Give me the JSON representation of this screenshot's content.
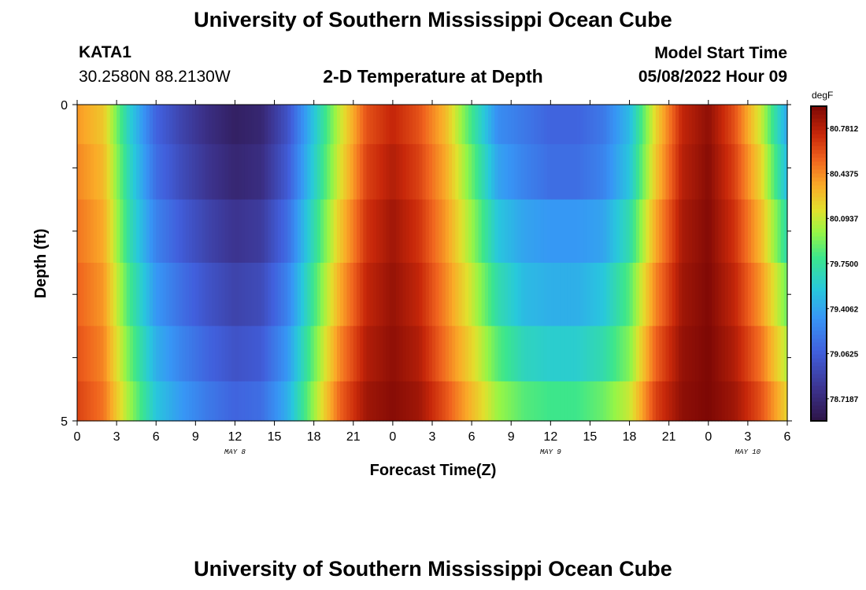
{
  "header": {
    "title": "University of Southern Mississippi Ocean Cube",
    "station_id": "KATA1",
    "coords": "30.2580N  88.2130W",
    "model_label": "Model Start Time",
    "model_value": "05/08/2022 Hour 09"
  },
  "second_panel_title": "University of Southern Mississippi Ocean Cube",
  "chart_data": {
    "type": "heatmap",
    "title": "2-D Temperature at Depth",
    "xlabel": "Forecast Time(Z)",
    "ylabel": "Depth (ft)",
    "x_ticks": [
      "0",
      "3",
      "6",
      "9",
      "12",
      "15",
      "18",
      "21",
      "0",
      "3",
      "6",
      "9",
      "12",
      "15",
      "18",
      "21",
      "0",
      "3",
      "6"
    ],
    "date_labels": [
      {
        "text": "MAY 8",
        "tick_index": 4
      },
      {
        "text": "MAY 9",
        "tick_index": 12
      },
      {
        "text": "MAY 10",
        "tick_index": 17
      }
    ],
    "y_ticks": [
      "0",
      "5"
    ],
    "ylim": [
      0,
      5
    ],
    "colorbar": {
      "unit": "degF",
      "min": 78.55,
      "max": 80.95,
      "labels": [
        "80.7812",
        "80.4375",
        "80.0937",
        "79.7500",
        "79.4062",
        "79.0625",
        "78.7187"
      ],
      "label_values": [
        80.7812,
        80.4375,
        80.0937,
        79.75,
        79.4062,
        79.0625,
        78.7187
      ]
    },
    "hours": [
      0,
      2,
      4,
      6,
      8,
      10,
      12,
      14,
      16,
      18,
      20,
      22,
      24,
      26,
      28,
      30,
      32,
      34,
      36,
      38,
      40,
      42,
      44,
      46,
      48,
      50,
      52,
      54
    ],
    "depth_bands_ft": [
      0.25,
      1.0,
      2.0,
      3.0,
      4.0,
      4.75
    ],
    "temps_degF": [
      [
        80.4,
        80.25,
        79.6,
        79.1,
        78.9,
        78.75,
        78.65,
        78.7,
        79.0,
        79.55,
        80.1,
        80.6,
        80.75,
        80.6,
        80.3,
        79.8,
        79.3,
        79.2,
        79.1,
        79.1,
        79.2,
        79.5,
        80.2,
        80.75,
        80.9,
        80.6,
        80.1,
        79.4
      ],
      [
        80.45,
        80.3,
        79.65,
        79.15,
        78.95,
        78.8,
        78.7,
        78.75,
        79.05,
        79.6,
        80.15,
        80.65,
        80.8,
        80.65,
        80.35,
        79.9,
        79.4,
        79.25,
        79.15,
        79.15,
        79.25,
        79.55,
        80.25,
        80.78,
        80.92,
        80.65,
        80.2,
        79.5
      ],
      [
        80.5,
        80.35,
        79.7,
        79.25,
        79.05,
        78.9,
        78.8,
        78.85,
        79.15,
        79.7,
        80.25,
        80.7,
        80.85,
        80.7,
        80.4,
        80.0,
        79.55,
        79.4,
        79.35,
        79.35,
        79.4,
        79.7,
        80.35,
        80.82,
        80.93,
        80.7,
        80.3,
        79.7
      ],
      [
        80.55,
        80.4,
        79.8,
        79.35,
        79.15,
        79.0,
        78.9,
        78.95,
        79.25,
        79.8,
        80.35,
        80.75,
        80.88,
        80.75,
        80.45,
        80.1,
        79.7,
        79.5,
        79.45,
        79.45,
        79.55,
        79.85,
        80.45,
        80.85,
        80.94,
        80.75,
        80.4,
        79.9
      ],
      [
        80.6,
        80.45,
        79.9,
        79.45,
        79.25,
        79.1,
        79.0,
        79.05,
        79.35,
        79.9,
        80.45,
        80.8,
        80.9,
        80.8,
        80.5,
        80.2,
        79.85,
        79.65,
        79.6,
        79.6,
        79.7,
        79.95,
        80.55,
        80.88,
        80.95,
        80.8,
        80.5,
        80.05
      ],
      [
        80.65,
        80.5,
        80.0,
        79.55,
        79.35,
        79.2,
        79.1,
        79.15,
        79.45,
        80.0,
        80.55,
        80.85,
        80.92,
        80.85,
        80.6,
        80.3,
        80.0,
        79.85,
        79.8,
        79.8,
        79.9,
        80.1,
        80.65,
        80.9,
        80.95,
        80.85,
        80.6,
        80.2
      ]
    ]
  }
}
